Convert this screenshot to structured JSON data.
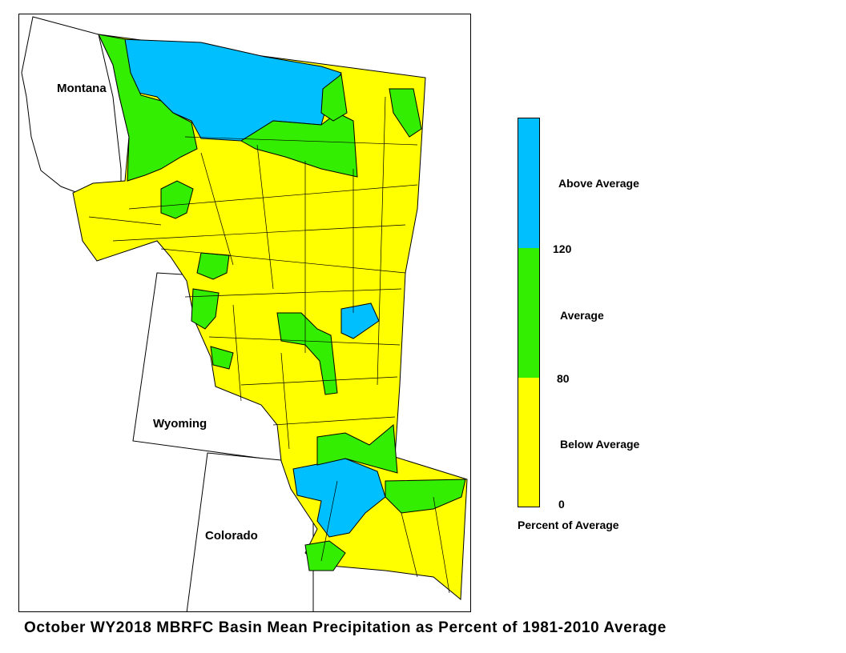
{
  "map": {
    "states": [
      {
        "id": "montana",
        "label": "Montana"
      },
      {
        "id": "wyoming",
        "label": "Wyoming"
      },
      {
        "id": "colorado",
        "label": "Colorado"
      }
    ]
  },
  "legend": {
    "categories": [
      {
        "label": "Above Average",
        "color": "#00BFFF"
      },
      {
        "label": "Average",
        "color": "#33EE00"
      },
      {
        "label": "Below Average",
        "color": "#FFFF00"
      }
    ],
    "breaks": [
      "120",
      "80",
      "0"
    ],
    "title": "Percent of Average"
  },
  "caption": "October WY2018 MBRFC Basin Mean Precipitation as Percent of 1981-2010 Average"
}
